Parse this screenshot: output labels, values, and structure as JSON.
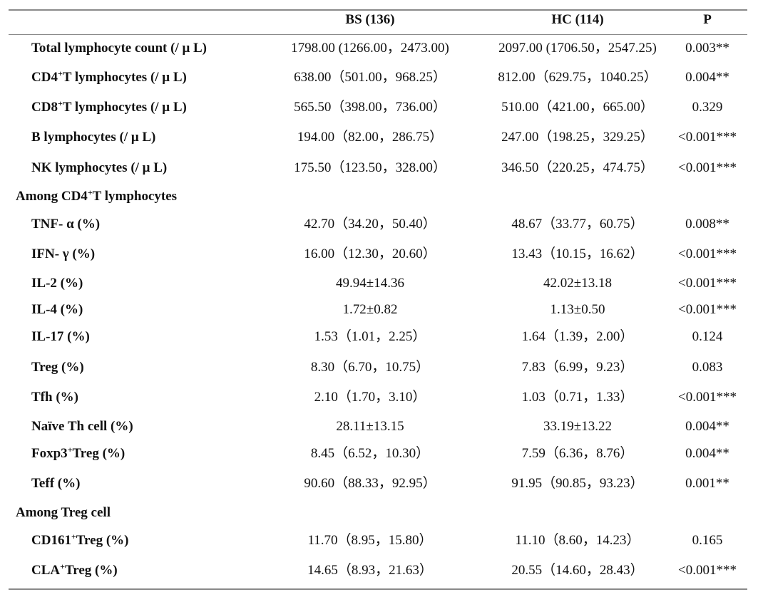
{
  "header": {
    "col_bs": "BS (136)",
    "col_hc": "HC (114)",
    "col_p": "P"
  },
  "rows": [
    {
      "type": "data",
      "label_pre": "Total lymphocyte count (/ μ L)",
      "sup": "",
      "label_post": "",
      "bs": "1798.00 (1266.00，2473.00)",
      "hc": "2097.00 (1706.50，2547.25)",
      "p": "0.003**"
    },
    {
      "type": "data",
      "label_pre": "CD4",
      "sup": "+",
      "label_post": "T lymphocytes (/ μ L)",
      "bs": "638.00（501.00，968.25）",
      "hc": "812.00（629.75，1040.25）",
      "p": "0.004**"
    },
    {
      "type": "data",
      "label_pre": "CD8",
      "sup": "+",
      "label_post": "T lymphocytes (/ μ L)",
      "bs": "565.50（398.00，736.00）",
      "hc": "510.00（421.00，665.00）",
      "p": "0.329"
    },
    {
      "type": "data",
      "label_pre": "B lymphocytes (/ μ L)",
      "sup": "",
      "label_post": "",
      "bs": "194.00（82.00，286.75）",
      "hc": "247.00（198.25，329.25）",
      "p": "<0.001***"
    },
    {
      "type": "data",
      "label_pre": "NK lymphocytes (/ μ L)",
      "sup": "",
      "label_post": "",
      "bs": "175.50（123.50，328.00）",
      "hc": "346.50（220.25，474.75）",
      "p": "<0.001***"
    },
    {
      "type": "section",
      "label_pre": "Among CD4",
      "sup": "+",
      "label_post": "T lymphocytes"
    },
    {
      "type": "data",
      "label_pre": "TNF- α (%)",
      "sup": "",
      "label_post": "",
      "bs": "42.70（34.20，50.40）",
      "hc": "48.67（33.77，60.75）",
      "p": "0.008**"
    },
    {
      "type": "data",
      "label_pre": "IFN- γ (%)",
      "sup": "",
      "label_post": "",
      "bs": "16.00（12.30，20.60）",
      "hc": "13.43（10.15，16.62）",
      "p": "<0.001***"
    },
    {
      "type": "data",
      "label_pre": "IL-2 (%)",
      "sup": "",
      "label_post": "",
      "bs": "49.94±14.36",
      "hc": "42.02±13.18",
      "p": "<0.001***"
    },
    {
      "type": "data",
      "label_pre": "IL-4 (%)",
      "sup": "",
      "label_post": "",
      "bs": "1.72±0.82",
      "hc": "1.13±0.50",
      "p": "<0.001***"
    },
    {
      "type": "data",
      "label_pre": "IL-17 (%)",
      "sup": "",
      "label_post": "",
      "bs": "1.53（1.01，2.25）",
      "hc": "1.64（1.39，2.00）",
      "p": "0.124"
    },
    {
      "type": "data",
      "label_pre": "Treg (%)",
      "sup": "",
      "label_post": "",
      "bs": "8.30（6.70，10.75）",
      "hc": "7.83（6.99，9.23）",
      "p": "0.083"
    },
    {
      "type": "data",
      "label_pre": "Tfh (%)",
      "sup": "",
      "label_post": "",
      "bs": "2.10（1.70，3.10）",
      "hc": "1.03（0.71，1.33）",
      "p": "<0.001***"
    },
    {
      "type": "data",
      "label_pre": "Naïve Th cell (%)",
      "sup": "",
      "label_post": "",
      "bs": "28.11±13.15",
      "hc": "33.19±13.22",
      "p": "0.004**"
    },
    {
      "type": "data",
      "label_pre": "Foxp3",
      "sup": "+",
      "label_post": "Treg (%)",
      "bs": "8.45（6.52，10.30）",
      "hc": "7.59（6.36，8.76）",
      "p": "0.004**"
    },
    {
      "type": "data",
      "label_pre": "Teff (%)",
      "sup": "",
      "label_post": "",
      "bs": "90.60（88.33，92.95）",
      "hc": "91.95（90.85，93.23）",
      "p": "0.001**"
    },
    {
      "type": "section",
      "label_pre": "Among Treg cell",
      "sup": "",
      "label_post": ""
    },
    {
      "type": "data",
      "label_pre": "CD161",
      "sup": "+",
      "label_post": "Treg (%)",
      "bs": "11.70（8.95，15.80）",
      "hc": "11.10（8.60，14.23）",
      "p": "0.165"
    },
    {
      "type": "data",
      "label_pre": "CLA",
      "sup": "+",
      "label_post": "Treg (%)",
      "bs": "14.65（8.93，21.63）",
      "hc": "20.55（14.60，28.43）",
      "p": "<0.001***"
    }
  ]
}
